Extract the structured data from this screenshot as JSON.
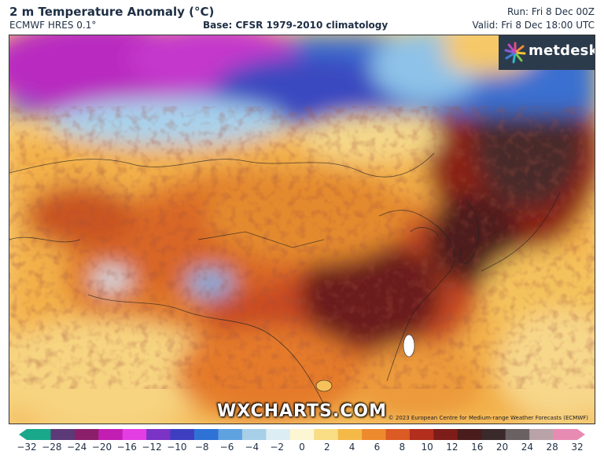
{
  "header": {
    "title": "2 m Temperature Anomaly (°C)",
    "model": "ECMWF HRES 0.1°",
    "base": "Base: CFSR 1979-2010 climatology",
    "run": "Run: Fri 8 Dec 00Z",
    "valid": "Valid: Fri 8 Dec 18:00 UTC"
  },
  "branding": {
    "logo_text": "metdesk",
    "logo_icon": "starburst-icon",
    "watermark": "WXCHARTS.COM",
    "copyright": "© 2023 European Centre for Medium-range Weather Forecasts (ECMWF)"
  },
  "colorbar": {
    "ticks": [
      "−32",
      "−28",
      "−24",
      "−20",
      "−16",
      "−12",
      "−10",
      "−8",
      "−6",
      "−4",
      "−2",
      "0",
      "2",
      "4",
      "6",
      "8",
      "10",
      "12",
      "16",
      "20",
      "24",
      "28",
      "32"
    ],
    "colors": [
      "#1aa88a",
      "#5c3a77",
      "#8c1f6a",
      "#c21eb3",
      "#e33ee3",
      "#7a33c4",
      "#3d3fc0",
      "#2f72d6",
      "#5fa2e0",
      "#a7cfe8",
      "#dceef3",
      "#fdf6d3",
      "#f8dd85",
      "#f5b948",
      "#ee8a2e",
      "#dc5a23",
      "#b32e1c",
      "#7d1c18",
      "#4a1c1c",
      "#3a2a2c",
      "#6a6162",
      "#b9a3a8",
      "#e88bb3"
    ]
  }
}
